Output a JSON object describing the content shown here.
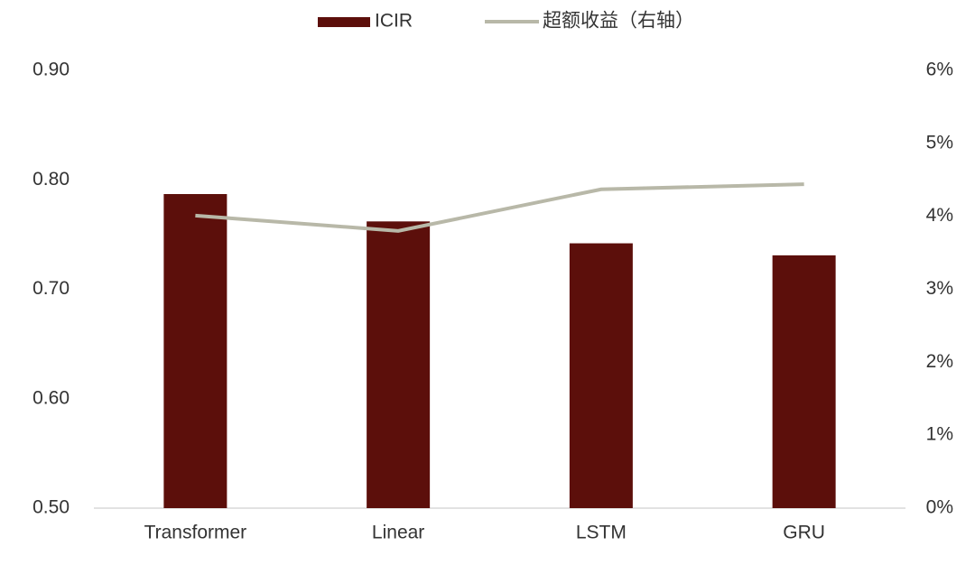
{
  "chart_data": {
    "type": "combo",
    "categories": [
      "Transformer",
      "Linear",
      "LSTM",
      "GRU"
    ],
    "series": [
      {
        "name": "ICIR",
        "type": "bar",
        "color": "#5c0f0b",
        "values": [
          0.787,
          0.762,
          0.742,
          0.731
        ]
      },
      {
        "name": "超额收益（右轴）",
        "type": "line",
        "axis": "y2",
        "color": "#b8b8a8",
        "values": [
          4.01,
          3.8,
          4.37,
          4.44
        ]
      }
    ],
    "ylim": [
      0.5,
      0.9
    ],
    "yticks": [
      {
        "value": 0.5,
        "label": "0.50"
      },
      {
        "value": 0.6,
        "label": "0.60"
      },
      {
        "value": 0.7,
        "label": "0.70"
      },
      {
        "value": 0.8,
        "label": "0.80"
      },
      {
        "value": 0.9,
        "label": "0.90"
      }
    ],
    "y2lim": [
      0,
      6
    ],
    "y2ticks": [
      {
        "value": 0,
        "label": "0%"
      },
      {
        "value": 1,
        "label": "1%"
      },
      {
        "value": 2,
        "label": "2%"
      },
      {
        "value": 3,
        "label": "3%"
      },
      {
        "value": 4,
        "label": "4%"
      },
      {
        "value": 5,
        "label": "5%"
      },
      {
        "value": 6,
        "label": "6%"
      }
    ],
    "grid": false,
    "legend": "top"
  }
}
